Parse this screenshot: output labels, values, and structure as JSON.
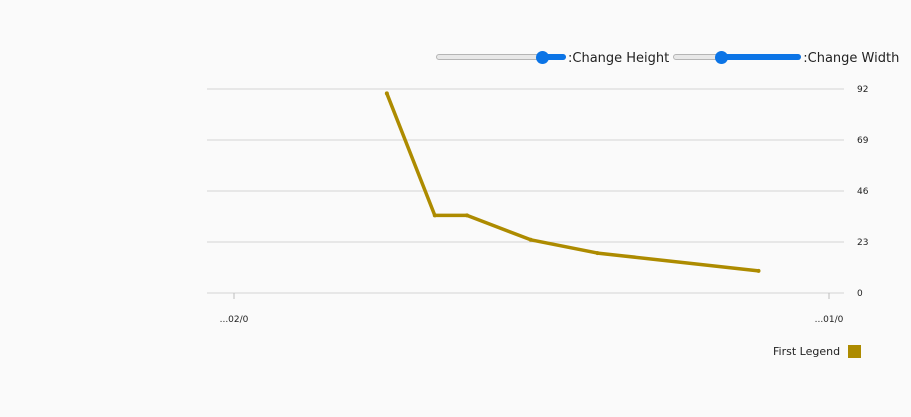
{
  "controls": {
    "height_label": ":Change Height",
    "width_label": ":Change Width",
    "height_value": 0.8,
    "width_value": 0.35
  },
  "chart_data": {
    "type": "line",
    "title": "",
    "xlabel": "",
    "ylabel": "",
    "x_ticks": [
      "...02/0",
      "...01/0"
    ],
    "y_ticks": [
      0,
      23,
      46,
      69,
      92
    ],
    "ylim": [
      0,
      92
    ],
    "y_axis_position": "right",
    "grid": true,
    "legend_position": "bottom-right",
    "series": [
      {
        "name": "First Legend",
        "color": "#ad8b00",
        "x": [
          0.285,
          0.361,
          0.412,
          0.513,
          0.619,
          0.874
        ],
        "values": [
          90,
          35,
          35,
          24,
          18,
          10
        ]
      }
    ]
  }
}
